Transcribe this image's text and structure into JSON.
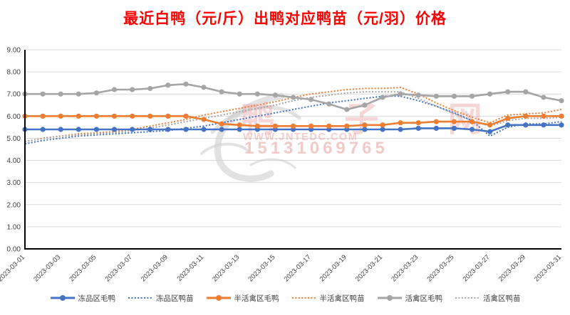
{
  "title": {
    "text": "最近白鸭（元/斤）出鸭对应鸭苗（元/羽）价格",
    "color": "#FF0000"
  },
  "watermark": {
    "site_name": "鸭 子 网",
    "url": "WWW.JNTEDC.COM",
    "phone": "15131069765",
    "color": "#E89B9B"
  },
  "colors": {
    "blue": "#4472C4",
    "orange": "#ED7D31",
    "gray": "#A5A5A5",
    "grid": "#D9D9D9",
    "axis": "#000000",
    "tick_text": "#404040"
  },
  "chart_data": {
    "type": "line",
    "title": "最近白鸭（元/斤）出鸭对应鸭苗（元/羽）价格",
    "xlabel": "",
    "ylabel": "",
    "ylim": [
      0,
      9
    ],
    "grid": true,
    "legend_position": "bottom",
    "y_tick_labels": [
      "9.00",
      "8.00",
      "7.00",
      "6.00",
      "5.00",
      "4.00",
      "3.00",
      "2.00",
      "1.00",
      "0.00"
    ],
    "x": [
      "2023-03-01",
      "2023-03-02",
      "2023-03-03",
      "2023-03-04",
      "2023-03-05",
      "2023-03-06",
      "2023-03-07",
      "2023-03-08",
      "2023-03-09",
      "2023-03-10",
      "2023-03-11",
      "2023-03-12",
      "2023-03-13",
      "2023-03-14",
      "2023-03-15",
      "2023-03-16",
      "2023-03-17",
      "2023-03-18",
      "2023-03-19",
      "2023-03-20",
      "2023-03-21",
      "2023-03-22",
      "2023-03-23",
      "2023-03-24",
      "2023-03-25",
      "2023-03-26",
      "2023-03-27",
      "2023-03-28",
      "2023-03-29",
      "2023-03-30",
      "2023-03-31"
    ],
    "x_tick_labels": [
      "2023-03-01",
      "2023-03-03",
      "2023-03-05",
      "2023-03-07",
      "2023-03-09",
      "2023-03-11",
      "2023-03-13",
      "2023-03-15",
      "2023-03-17",
      "2023-03-19",
      "2023-03-21",
      "2023-03-23",
      "2023-03-25",
      "2023-03-27",
      "2023-03-29",
      "2023-03-31"
    ],
    "series": [
      {
        "name": "冻品区毛鸭",
        "color": "#4472C4",
        "style": "solid",
        "values": [
          5.4,
          5.4,
          5.4,
          5.4,
          5.4,
          5.4,
          5.4,
          5.4,
          5.4,
          5.4,
          5.4,
          5.4,
          5.4,
          5.4,
          5.4,
          5.4,
          5.4,
          5.4,
          5.4,
          5.4,
          5.4,
          5.4,
          5.45,
          5.45,
          5.45,
          5.4,
          5.3,
          5.6,
          5.6,
          5.6,
          5.6
        ]
      },
      {
        "name": "冻品区鸭苗",
        "color": "#4472C4",
        "style": "dotted",
        "values": [
          4.75,
          4.9,
          5.0,
          5.1,
          5.15,
          5.2,
          5.25,
          5.3,
          5.35,
          5.45,
          5.55,
          5.7,
          5.85,
          6.0,
          6.15,
          6.3,
          6.45,
          6.6,
          6.7,
          6.8,
          6.9,
          6.9,
          6.7,
          6.45,
          6.15,
          5.8,
          5.1,
          5.5,
          5.65,
          5.65,
          5.75
        ]
      },
      {
        "name": "半活禽区毛鸭",
        "color": "#ED7D31",
        "style": "solid",
        "values": [
          6.0,
          6.0,
          6.0,
          6.0,
          6.0,
          6.0,
          6.0,
          6.0,
          6.0,
          6.0,
          5.85,
          5.65,
          5.6,
          5.55,
          5.55,
          5.55,
          5.55,
          5.55,
          5.55,
          5.6,
          5.6,
          5.7,
          5.7,
          5.75,
          5.75,
          5.75,
          5.6,
          5.9,
          6.0,
          6.0,
          6.0
        ]
      },
      {
        "name": "半活禽区鸭苗",
        "color": "#ED7D31",
        "style": "dotted",
        "values": [
          4.85,
          5.0,
          5.1,
          5.2,
          5.25,
          5.3,
          5.4,
          5.55,
          5.7,
          5.85,
          6.05,
          6.2,
          6.35,
          6.5,
          6.65,
          6.85,
          7.0,
          7.1,
          7.2,
          7.25,
          7.25,
          7.3,
          7.0,
          6.6,
          6.25,
          5.95,
          5.7,
          6.05,
          6.1,
          6.15,
          6.3
        ]
      },
      {
        "name": "活禽区毛鸭",
        "color": "#A5A5A5",
        "style": "solid",
        "values": [
          7.0,
          7.0,
          7.0,
          7.0,
          7.05,
          7.2,
          7.2,
          7.25,
          7.4,
          7.45,
          7.3,
          7.1,
          7.0,
          7.0,
          6.95,
          6.85,
          6.75,
          6.55,
          6.3,
          6.5,
          6.85,
          7.0,
          6.95,
          6.9,
          6.9,
          6.9,
          7.0,
          7.1,
          7.1,
          6.85,
          6.7
        ]
      },
      {
        "name": "活禽区鸭苗",
        "color": "#A5A5A5",
        "style": "dotted",
        "values": [
          4.85,
          5.0,
          5.1,
          5.15,
          5.2,
          5.25,
          5.35,
          5.45,
          5.6,
          5.75,
          5.9,
          6.05,
          6.2,
          6.35,
          6.5,
          6.7,
          6.85,
          6.95,
          7.05,
          7.1,
          7.1,
          7.1,
          6.8,
          6.45,
          6.1,
          5.8,
          5.55,
          5.8,
          5.9,
          5.9,
          5.95
        ]
      }
    ]
  }
}
